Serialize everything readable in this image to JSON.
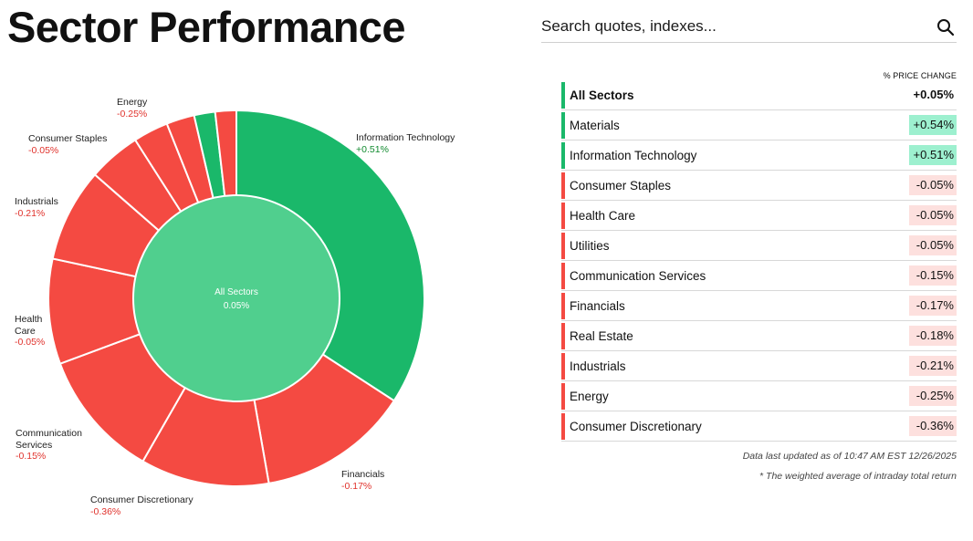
{
  "page": {
    "title": "Sector Performance"
  },
  "search": {
    "placeholder": "Search quotes, indexes..."
  },
  "icons": {
    "search": "search-icon"
  },
  "colors": {
    "positive": "#1ab86a",
    "positive_light": "#50cf8e",
    "negative": "#f44a42",
    "positive_badge": "#9df0cf",
    "negative_badge": "#fde0de",
    "positive_text": "#118a2f",
    "negative_text": "#e0322c"
  },
  "table": {
    "header": "% PRICE CHANGE",
    "rows": [
      {
        "name": "All Sectors",
        "change": "+0.05%",
        "direction": "up",
        "total": true
      },
      {
        "name": "Materials",
        "change": "+0.54%",
        "direction": "up"
      },
      {
        "name": "Information Technology",
        "change": "+0.51%",
        "direction": "up"
      },
      {
        "name": "Consumer Staples",
        "change": "-0.05%",
        "direction": "down"
      },
      {
        "name": "Health Care",
        "change": "-0.05%",
        "direction": "down"
      },
      {
        "name": "Utilities",
        "change": "-0.05%",
        "direction": "down"
      },
      {
        "name": "Communication Services",
        "change": "-0.15%",
        "direction": "down"
      },
      {
        "name": "Financials",
        "change": "-0.17%",
        "direction": "down"
      },
      {
        "name": "Real Estate",
        "change": "-0.18%",
        "direction": "down"
      },
      {
        "name": "Industrials",
        "change": "-0.21%",
        "direction": "down"
      },
      {
        "name": "Energy",
        "change": "-0.25%",
        "direction": "down"
      },
      {
        "name": "Consumer Discretionary",
        "change": "-0.36%",
        "direction": "down"
      }
    ]
  },
  "footer": {
    "updated": "Data last updated as of 10:47 AM EST 12/26/2025",
    "note": "* The weighted average of intraday total return"
  },
  "chart_data": {
    "type": "pie",
    "subtype": "donut",
    "title": "",
    "center": {
      "label": "All Sectors",
      "value": "0.05%",
      "raw": 0.05
    },
    "weight_unit": "approx. % of index (estimated from slice sizes)",
    "slices": [
      {
        "name": "Information Technology",
        "weight": 34,
        "change": 0.51,
        "label_lines": [
          "Information Technology"
        ],
        "value_label": "+0.51%",
        "labeled": true
      },
      {
        "name": "Financials",
        "weight": 13,
        "change": -0.17,
        "label_lines": [
          "Financials"
        ],
        "value_label": "-0.17%",
        "labeled": true
      },
      {
        "name": "Consumer Discretionary",
        "weight": 11,
        "change": -0.36,
        "label_lines": [
          "Consumer Discretionary"
        ],
        "value_label": "-0.36%",
        "labeled": true
      },
      {
        "name": "Communication Services",
        "weight": 11,
        "change": -0.15,
        "label_lines": [
          "Communication",
          "Services"
        ],
        "value_label": "-0.15%",
        "labeled": true
      },
      {
        "name": "Health Care",
        "weight": 9,
        "change": -0.05,
        "label_lines": [
          "Health",
          "Care"
        ],
        "value_label": "-0.05%",
        "labeled": true
      },
      {
        "name": "Industrials",
        "weight": 8,
        "change": -0.21,
        "label_lines": [
          "Industrials"
        ],
        "value_label": "-0.21%",
        "labeled": true
      },
      {
        "name": "Consumer Staples",
        "weight": 4.5,
        "change": -0.05,
        "label_lines": [
          "Consumer Staples"
        ],
        "value_label": "-0.05%",
        "labeled": true
      },
      {
        "name": "Energy",
        "weight": 3,
        "change": -0.25,
        "label_lines": [
          "Energy"
        ],
        "value_label": "-0.25%",
        "labeled": true
      },
      {
        "name": "Utilities",
        "weight": 2.4,
        "change": -0.05,
        "labeled": false
      },
      {
        "name": "Materials",
        "weight": 1.8,
        "change": 0.54,
        "labeled": false
      },
      {
        "name": "Real Estate",
        "weight": 1.8,
        "change": -0.18,
        "labeled": false
      }
    ]
  }
}
